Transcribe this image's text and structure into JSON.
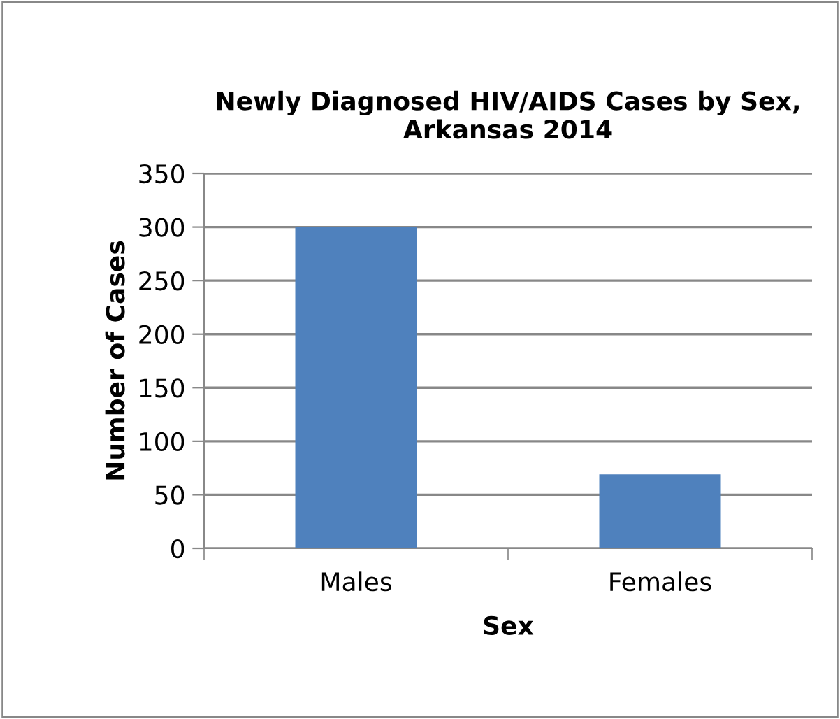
{
  "chart_data": {
    "type": "bar",
    "title": "Newly Diagnosed HIV/AIDS Cases by Sex,\nArkansas 2014",
    "xlabel": "Sex",
    "ylabel": "Number of Cases",
    "categories": [
      "Males",
      "Females"
    ],
    "values": [
      300,
      69
    ],
    "color": "#4f81bd",
    "ylim": [
      0,
      350
    ],
    "yticks": [
      0,
      50,
      100,
      150,
      200,
      250,
      300,
      350
    ],
    "grid": "y",
    "legend": false
  }
}
